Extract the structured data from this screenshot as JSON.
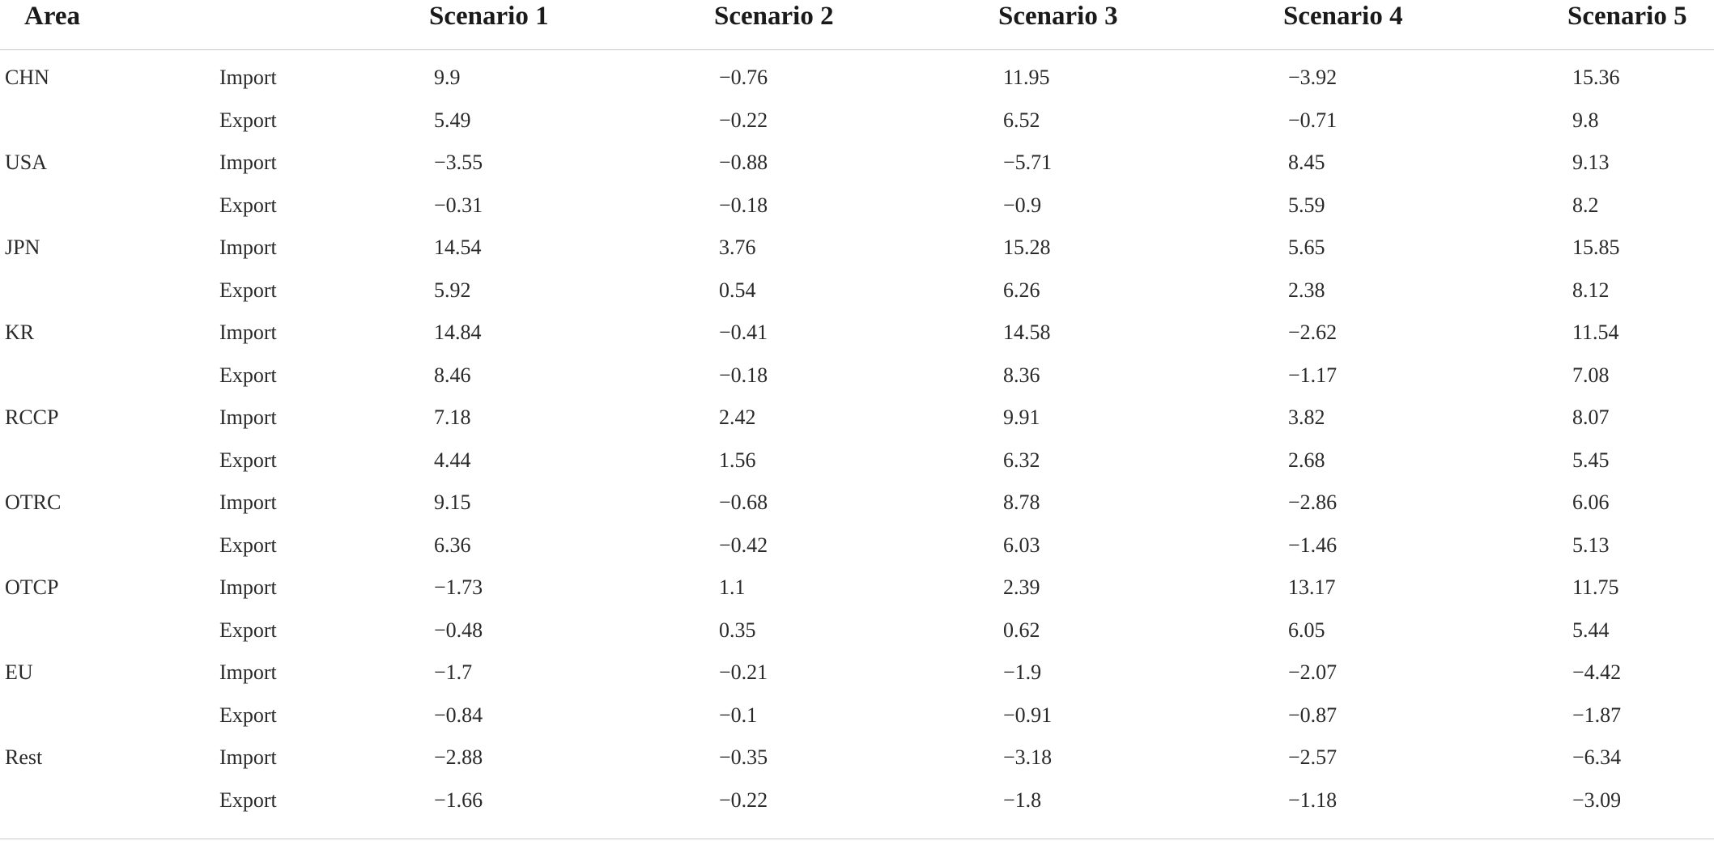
{
  "table": {
    "headers": [
      "Area",
      "",
      "Scenario 1",
      "Scenario 2",
      "Scenario 3",
      "Scenario 4",
      "Scenario 5"
    ],
    "rows": [
      [
        "CHN",
        "Import",
        "9.9",
        "−0.76",
        "11.95",
        "−3.92",
        "15.36"
      ],
      [
        "",
        "Export",
        "5.49",
        "−0.22",
        "6.52",
        "−0.71",
        "9.8"
      ],
      [
        "USA",
        "Import",
        "−3.55",
        "−0.88",
        "−5.71",
        "8.45",
        "9.13"
      ],
      [
        "",
        "Export",
        "−0.31",
        "−0.18",
        "−0.9",
        "5.59",
        "8.2"
      ],
      [
        "JPN",
        "Import",
        "14.54",
        "3.76",
        "15.28",
        "5.65",
        "15.85"
      ],
      [
        "",
        "Export",
        "5.92",
        "0.54",
        "6.26",
        "2.38",
        "8.12"
      ],
      [
        "KR",
        "Import",
        "14.84",
        "−0.41",
        "14.58",
        "−2.62",
        "11.54"
      ],
      [
        "",
        "Export",
        "8.46",
        "−0.18",
        "8.36",
        "−1.17",
        "7.08"
      ],
      [
        "RCCP",
        "Import",
        "7.18",
        "2.42",
        "9.91",
        "3.82",
        "8.07"
      ],
      [
        "",
        "Export",
        "4.44",
        "1.56",
        "6.32",
        "2.68",
        "5.45"
      ],
      [
        "OTRC",
        "Import",
        "9.15",
        "−0.68",
        "8.78",
        "−2.86",
        "6.06"
      ],
      [
        "",
        "Export",
        "6.36",
        "−0.42",
        "6.03",
        "−1.46",
        "5.13"
      ],
      [
        "OTCP",
        "Import",
        "−1.73",
        "1.1",
        "2.39",
        "13.17",
        "11.75"
      ],
      [
        "",
        "Export",
        "−0.48",
        "0.35",
        "0.62",
        "6.05",
        "5.44"
      ],
      [
        "EU",
        "Import",
        "−1.7",
        "−0.21",
        "−1.9",
        "−2.07",
        "−4.42"
      ],
      [
        "",
        "Export",
        "−0.84",
        "−0.1",
        "−0.91",
        "−0.87",
        "−1.87"
      ],
      [
        "Rest",
        "Import",
        "−2.88",
        "−0.35",
        "−3.18",
        "−2.57",
        "−6.34"
      ],
      [
        "",
        "Export",
        "−1.66",
        "−0.22",
        "−1.8",
        "−1.18",
        "−3.09"
      ]
    ]
  }
}
